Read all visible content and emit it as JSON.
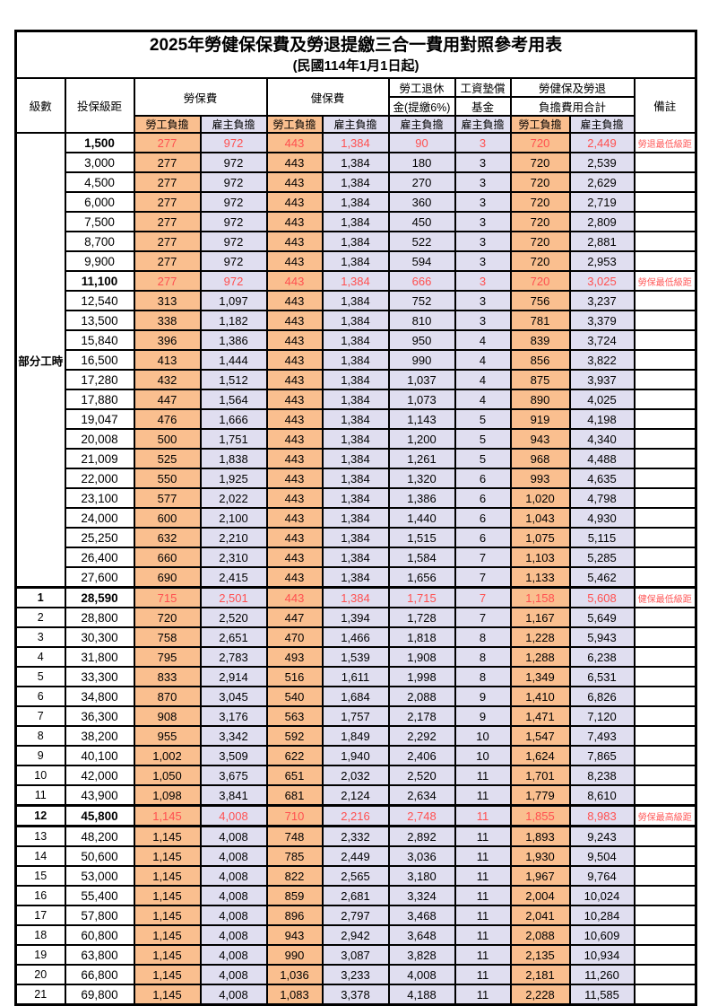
{
  "title": "2025年勞健保保費及勞退提繳三合一費用對照參考用表",
  "subtitle": "(民國114年1月1日起)",
  "colors": {
    "worker_fill": "#FABF8F",
    "employer_fill": "#E0DEF0",
    "highlight_text": "#FF5050",
    "remark_text": "#FF5A5A",
    "border": "#000000"
  },
  "header": {
    "level": "級數",
    "bracket": "投保級距",
    "labor_ins": "勞保費",
    "health_ins": "健保費",
    "pension_line1": "勞工退休",
    "pension_line2": "金(提繳6%)",
    "wage_fund_line1": "工資墊償",
    "wage_fund_line2": "基金",
    "total_line1": "勞健保及勞退",
    "total_line2": "負擔費用合計",
    "remark": "備註",
    "worker": "勞工負擔",
    "employer": "雇主負擔"
  },
  "group_label": "部分工時",
  "table": {
    "rows": [
      {
        "level": "",
        "bracket": "1,500",
        "lw": "277",
        "le": "972",
        "hw": "443",
        "he": "1,384",
        "pe": "90",
        "wf": "3",
        "tw": "720",
        "te": "2,449",
        "remark": "勞退最低級距",
        "hl": true
      },
      {
        "level": "",
        "bracket": "3,000",
        "lw": "277",
        "le": "972",
        "hw": "443",
        "he": "1,384",
        "pe": "180",
        "wf": "3",
        "tw": "720",
        "te": "2,539",
        "remark": ""
      },
      {
        "level": "",
        "bracket": "4,500",
        "lw": "277",
        "le": "972",
        "hw": "443",
        "he": "1,384",
        "pe": "270",
        "wf": "3",
        "tw": "720",
        "te": "2,629",
        "remark": ""
      },
      {
        "level": "",
        "bracket": "6,000",
        "lw": "277",
        "le": "972",
        "hw": "443",
        "he": "1,384",
        "pe": "360",
        "wf": "3",
        "tw": "720",
        "te": "2,719",
        "remark": ""
      },
      {
        "level": "",
        "bracket": "7,500",
        "lw": "277",
        "le": "972",
        "hw": "443",
        "he": "1,384",
        "pe": "450",
        "wf": "3",
        "tw": "720",
        "te": "2,809",
        "remark": ""
      },
      {
        "level": "",
        "bracket": "8,700",
        "lw": "277",
        "le": "972",
        "hw": "443",
        "he": "1,384",
        "pe": "522",
        "wf": "3",
        "tw": "720",
        "te": "2,881",
        "remark": ""
      },
      {
        "level": "",
        "bracket": "9,900",
        "lw": "277",
        "le": "972",
        "hw": "443",
        "he": "1,384",
        "pe": "594",
        "wf": "3",
        "tw": "720",
        "te": "2,953",
        "remark": ""
      },
      {
        "level": "",
        "bracket": "11,100",
        "lw": "277",
        "le": "972",
        "hw": "443",
        "he": "1,384",
        "pe": "666",
        "wf": "3",
        "tw": "720",
        "te": "3,025",
        "remark": "勞保最低級距",
        "hl": true
      },
      {
        "level": "",
        "bracket": "12,540",
        "lw": "313",
        "le": "1,097",
        "hw": "443",
        "he": "1,384",
        "pe": "752",
        "wf": "3",
        "tw": "756",
        "te": "3,237",
        "remark": ""
      },
      {
        "level": "",
        "bracket": "13,500",
        "lw": "338",
        "le": "1,182",
        "hw": "443",
        "he": "1,384",
        "pe": "810",
        "wf": "3",
        "tw": "781",
        "te": "3,379",
        "remark": ""
      },
      {
        "level": "",
        "bracket": "15,840",
        "lw": "396",
        "le": "1,386",
        "hw": "443",
        "he": "1,384",
        "pe": "950",
        "wf": "4",
        "tw": "839",
        "te": "3,724",
        "remark": ""
      },
      {
        "level": "",
        "bracket": "16,500",
        "lw": "413",
        "le": "1,444",
        "hw": "443",
        "he": "1,384",
        "pe": "990",
        "wf": "4",
        "tw": "856",
        "te": "3,822",
        "remark": ""
      },
      {
        "level": "",
        "bracket": "17,280",
        "lw": "432",
        "le": "1,512",
        "hw": "443",
        "he": "1,384",
        "pe": "1,037",
        "wf": "4",
        "tw": "875",
        "te": "3,937",
        "remark": ""
      },
      {
        "level": "",
        "bracket": "17,880",
        "lw": "447",
        "le": "1,564",
        "hw": "443",
        "he": "1,384",
        "pe": "1,073",
        "wf": "4",
        "tw": "890",
        "te": "4,025",
        "remark": ""
      },
      {
        "level": "",
        "bracket": "19,047",
        "lw": "476",
        "le": "1,666",
        "hw": "443",
        "he": "1,384",
        "pe": "1,143",
        "wf": "5",
        "tw": "919",
        "te": "4,198",
        "remark": ""
      },
      {
        "level": "",
        "bracket": "20,008",
        "lw": "500",
        "le": "1,751",
        "hw": "443",
        "he": "1,384",
        "pe": "1,200",
        "wf": "5",
        "tw": "943",
        "te": "4,340",
        "remark": ""
      },
      {
        "level": "",
        "bracket": "21,009",
        "lw": "525",
        "le": "1,838",
        "hw": "443",
        "he": "1,384",
        "pe": "1,261",
        "wf": "5",
        "tw": "968",
        "te": "4,488",
        "remark": ""
      },
      {
        "level": "",
        "bracket": "22,000",
        "lw": "550",
        "le": "1,925",
        "hw": "443",
        "he": "1,384",
        "pe": "1,320",
        "wf": "6",
        "tw": "993",
        "te": "4,635",
        "remark": ""
      },
      {
        "level": "",
        "bracket": "23,100",
        "lw": "577",
        "le": "2,022",
        "hw": "443",
        "he": "1,384",
        "pe": "1,386",
        "wf": "6",
        "tw": "1,020",
        "te": "4,798",
        "remark": ""
      },
      {
        "level": "",
        "bracket": "24,000",
        "lw": "600",
        "le": "2,100",
        "hw": "443",
        "he": "1,384",
        "pe": "1,440",
        "wf": "6",
        "tw": "1,043",
        "te": "4,930",
        "remark": ""
      },
      {
        "level": "",
        "bracket": "25,250",
        "lw": "632",
        "le": "2,210",
        "hw": "443",
        "he": "1,384",
        "pe": "1,515",
        "wf": "6",
        "tw": "1,075",
        "te": "5,115",
        "remark": ""
      },
      {
        "level": "",
        "bracket": "26,400",
        "lw": "660",
        "le": "2,310",
        "hw": "443",
        "he": "1,384",
        "pe": "1,584",
        "wf": "7",
        "tw": "1,103",
        "te": "5,285",
        "remark": ""
      },
      {
        "level": "",
        "bracket": "27,600",
        "lw": "690",
        "le": "2,415",
        "hw": "443",
        "he": "1,384",
        "pe": "1,656",
        "wf": "7",
        "tw": "1,133",
        "te": "5,462",
        "remark": ""
      },
      {
        "level": "1",
        "bracket": "28,590",
        "lw": "715",
        "le": "2,501",
        "hw": "443",
        "he": "1,384",
        "pe": "1,715",
        "wf": "7",
        "tw": "1,158",
        "te": "5,608",
        "remark": "健保最低級距",
        "hl": true,
        "sep_top": true
      },
      {
        "level": "2",
        "bracket": "28,800",
        "lw": "720",
        "le": "2,520",
        "hw": "447",
        "he": "1,394",
        "pe": "1,728",
        "wf": "7",
        "tw": "1,167",
        "te": "5,649",
        "remark": ""
      },
      {
        "level": "3",
        "bracket": "30,300",
        "lw": "758",
        "le": "2,651",
        "hw": "470",
        "he": "1,466",
        "pe": "1,818",
        "wf": "8",
        "tw": "1,228",
        "te": "5,943",
        "remark": ""
      },
      {
        "level": "4",
        "bracket": "31,800",
        "lw": "795",
        "le": "2,783",
        "hw": "493",
        "he": "1,539",
        "pe": "1,908",
        "wf": "8",
        "tw": "1,288",
        "te": "6,238",
        "remark": ""
      },
      {
        "level": "5",
        "bracket": "33,300",
        "lw": "833",
        "le": "2,914",
        "hw": "516",
        "he": "1,611",
        "pe": "1,998",
        "wf": "8",
        "tw": "1,349",
        "te": "6,531",
        "remark": ""
      },
      {
        "level": "6",
        "bracket": "34,800",
        "lw": "870",
        "le": "3,045",
        "hw": "540",
        "he": "1,684",
        "pe": "2,088",
        "wf": "9",
        "tw": "1,410",
        "te": "6,826",
        "remark": ""
      },
      {
        "level": "7",
        "bracket": "36,300",
        "lw": "908",
        "le": "3,176",
        "hw": "563",
        "he": "1,757",
        "pe": "2,178",
        "wf": "9",
        "tw": "1,471",
        "te": "7,120",
        "remark": ""
      },
      {
        "level": "8",
        "bracket": "38,200",
        "lw": "955",
        "le": "3,342",
        "hw": "592",
        "he": "1,849",
        "pe": "2,292",
        "wf": "10",
        "tw": "1,547",
        "te": "7,493",
        "remark": ""
      },
      {
        "level": "9",
        "bracket": "40,100",
        "lw": "1,002",
        "le": "3,509",
        "hw": "622",
        "he": "1,940",
        "pe": "2,406",
        "wf": "10",
        "tw": "1,624",
        "te": "7,865",
        "remark": ""
      },
      {
        "level": "10",
        "bracket": "42,000",
        "lw": "1,050",
        "le": "3,675",
        "hw": "651",
        "he": "2,032",
        "pe": "2,520",
        "wf": "11",
        "tw": "1,701",
        "te": "8,238",
        "remark": ""
      },
      {
        "level": "11",
        "bracket": "43,900",
        "lw": "1,098",
        "le": "3,841",
        "hw": "681",
        "he": "2,124",
        "pe": "2,634",
        "wf": "11",
        "tw": "1,779",
        "te": "8,610",
        "remark": ""
      },
      {
        "level": "12",
        "bracket": "45,800",
        "lw": "1,145",
        "le": "4,008",
        "hw": "710",
        "he": "2,216",
        "pe": "2,748",
        "wf": "11",
        "tw": "1,855",
        "te": "8,983",
        "remark": "勞保最高級距",
        "hl": true,
        "sep_top": true,
        "sep_bottom": true
      },
      {
        "level": "13",
        "bracket": "48,200",
        "lw": "1,145",
        "le": "4,008",
        "hw": "748",
        "he": "2,332",
        "pe": "2,892",
        "wf": "11",
        "tw": "1,893",
        "te": "9,243",
        "remark": ""
      },
      {
        "level": "14",
        "bracket": "50,600",
        "lw": "1,145",
        "le": "4,008",
        "hw": "785",
        "he": "2,449",
        "pe": "3,036",
        "wf": "11",
        "tw": "1,930",
        "te": "9,504",
        "remark": ""
      },
      {
        "level": "15",
        "bracket": "53,000",
        "lw": "1,145",
        "le": "4,008",
        "hw": "822",
        "he": "2,565",
        "pe": "3,180",
        "wf": "11",
        "tw": "1,967",
        "te": "9,764",
        "remark": ""
      },
      {
        "level": "16",
        "bracket": "55,400",
        "lw": "1,145",
        "le": "4,008",
        "hw": "859",
        "he": "2,681",
        "pe": "3,324",
        "wf": "11",
        "tw": "2,004",
        "te": "10,024",
        "remark": ""
      },
      {
        "level": "17",
        "bracket": "57,800",
        "lw": "1,145",
        "le": "4,008",
        "hw": "896",
        "he": "2,797",
        "pe": "3,468",
        "wf": "11",
        "tw": "2,041",
        "te": "10,284",
        "remark": ""
      },
      {
        "level": "18",
        "bracket": "60,800",
        "lw": "1,145",
        "le": "4,008",
        "hw": "943",
        "he": "2,942",
        "pe": "3,648",
        "wf": "11",
        "tw": "2,088",
        "te": "10,609",
        "remark": ""
      },
      {
        "level": "19",
        "bracket": "63,800",
        "lw": "1,145",
        "le": "4,008",
        "hw": "990",
        "he": "3,087",
        "pe": "3,828",
        "wf": "11",
        "tw": "2,135",
        "te": "10,934",
        "remark": ""
      },
      {
        "level": "20",
        "bracket": "66,800",
        "lw": "1,145",
        "le": "4,008",
        "hw": "1,036",
        "he": "3,233",
        "pe": "4,008",
        "wf": "11",
        "tw": "2,181",
        "te": "11,260",
        "remark": ""
      },
      {
        "level": "21",
        "bracket": "69,800",
        "lw": "1,145",
        "le": "4,008",
        "hw": "1,083",
        "he": "3,378",
        "pe": "4,188",
        "wf": "11",
        "tw": "2,228",
        "te": "11,585",
        "remark": ""
      }
    ]
  }
}
